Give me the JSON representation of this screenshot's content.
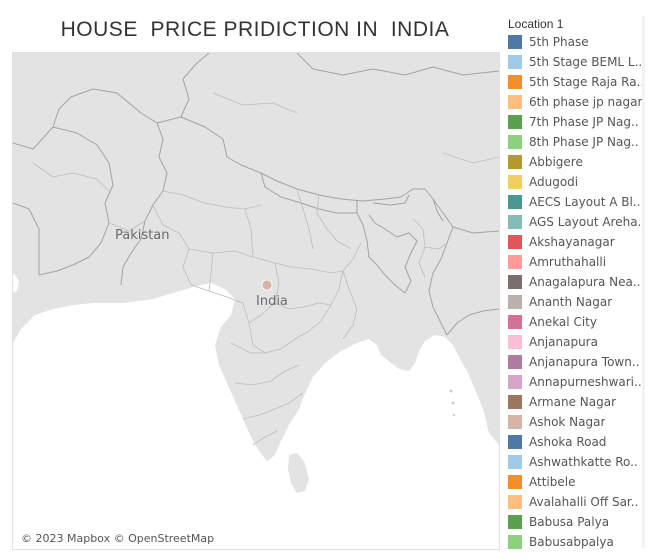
{
  "title": "HOUSE  PRICE PRIDICTION IN  INDIA",
  "map": {
    "labels": {
      "country_left": "Pakistan",
      "country_center": "India"
    },
    "attribution": "© 2023 Mapbox © OpenStreetMap",
    "colors": {
      "land": "#e3e3e3",
      "sea": "#ffffff",
      "borders": "#9a9a9a",
      "marker": "#d7b5a6"
    }
  },
  "legend": {
    "title": "Location 1",
    "items": [
      {
        "label": "5th Phase",
        "color": "#4e79a7"
      },
      {
        "label": "5th Stage BEML L..",
        "color": "#a0cbe8"
      },
      {
        "label": "5th Stage Raja Ra..",
        "color": "#f28e2b"
      },
      {
        "label": "6th phase jp nagar",
        "color": "#ffbe7d"
      },
      {
        "label": "7th Phase JP Nag..",
        "color": "#59a14f"
      },
      {
        "label": "8th Phase JP Nag..",
        "color": "#8cd17d"
      },
      {
        "label": "Abbigere",
        "color": "#b6992d"
      },
      {
        "label": "Adugodi",
        "color": "#f1ce63"
      },
      {
        "label": "AECS Layout A Bl..",
        "color": "#499894"
      },
      {
        "label": "AGS Layout Areha..",
        "color": "#86bcb6"
      },
      {
        "label": "Akshayanagar",
        "color": "#e15759"
      },
      {
        "label": "Amruthahalli",
        "color": "#ff9d9a"
      },
      {
        "label": "Anagalapura Nea..",
        "color": "#79706e"
      },
      {
        "label": "Ananth Nagar",
        "color": "#bab0ac"
      },
      {
        "label": "Anekal City",
        "color": "#d37295"
      },
      {
        "label": "Anjanapura",
        "color": "#fabfd2"
      },
      {
        "label": "Anjanapura Town..",
        "color": "#b07aa1"
      },
      {
        "label": "Annapurneshwari..",
        "color": "#d4a6c8"
      },
      {
        "label": "Armane Nagar",
        "color": "#9d7660"
      },
      {
        "label": "Ashok Nagar",
        "color": "#d7b5a6"
      },
      {
        "label": "Ashoka Road",
        "color": "#4e79a7"
      },
      {
        "label": "Ashwathkatte Ro..",
        "color": "#a0cbe8"
      },
      {
        "label": "Attibele",
        "color": "#f28e2b"
      },
      {
        "label": "Avalahalli Off Sar..",
        "color": "#ffbe7d"
      },
      {
        "label": "Babusa Palya",
        "color": "#59a14f"
      },
      {
        "label": "Babusabpalya",
        "color": "#8cd17d"
      }
    ]
  }
}
